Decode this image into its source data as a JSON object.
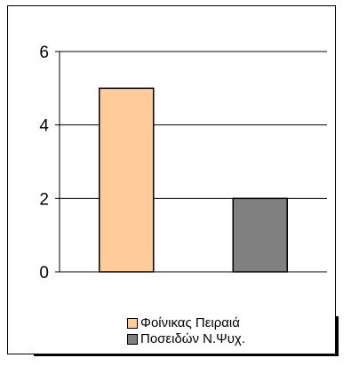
{
  "chart_data": {
    "type": "bar",
    "categories": [
      "Φοίνικας Πειραιά",
      "Ποσειδών Ν.Ψυχ."
    ],
    "values": [
      5,
      2
    ],
    "title": "",
    "xlabel": "",
    "ylabel": "",
    "ylim": [
      0,
      6
    ],
    "yticks": [
      0,
      2,
      4,
      6
    ],
    "ytick_labels": [
      "0",
      "2",
      "4",
      "6"
    ],
    "grid": true,
    "legend_position": "bottom",
    "colors": [
      "#ffcc99",
      "#808080"
    ]
  },
  "legend": {
    "items": [
      {
        "label": "Φοίνικας Πειραιά",
        "color": "#ffcc99"
      },
      {
        "label": "Ποσειδών Ν.Ψυχ.",
        "color": "#808080"
      }
    ]
  }
}
